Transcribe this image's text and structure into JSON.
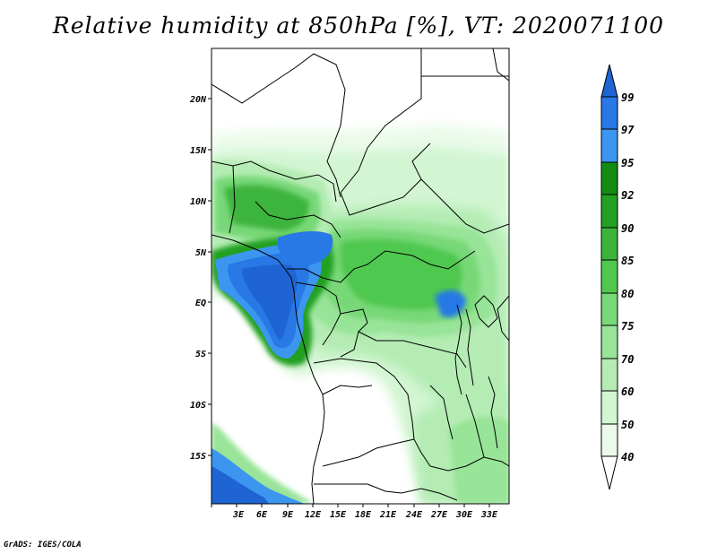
{
  "title": "Relative humidity at 850hPa [%], VT: 2020071100",
  "footer": "GrADS: IGES/COLA",
  "map": {
    "lon_labels": [
      "3E",
      "6E",
      "9E",
      "12E",
      "15E",
      "18E",
      "21E",
      "24E",
      "27E",
      "30E",
      "33E"
    ],
    "lat_labels": [
      "20N",
      "15N",
      "10N",
      "5N",
      "EQ",
      "5S",
      "10S",
      "15S"
    ]
  },
  "colorbar": {
    "levels": [
      "99",
      "97",
      "95",
      "92",
      "90",
      "85",
      "80",
      "75",
      "70",
      "60",
      "50",
      "40"
    ],
    "colors": [
      "#1e64d2",
      "#2878e6",
      "#3c96f0",
      "#148c14",
      "#24a024",
      "#3cb43c",
      "#50c850",
      "#78d878",
      "#98e498",
      "#b4ecb4",
      "#d2f5d2",
      "#ebfbeb"
    ]
  }
}
